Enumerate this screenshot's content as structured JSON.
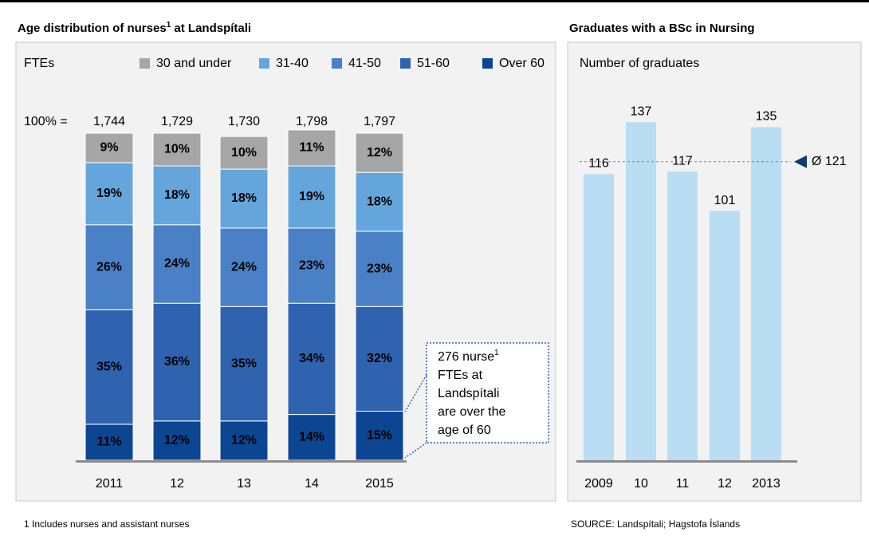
{
  "chart_data": [
    {
      "type": "stacked_bar",
      "title": [
        "Age distribution of nurses",
        "1",
        " at Landspítali"
      ],
      "unit_label": "FTEs",
      "totals_prefix": "100% =",
      "categories": [
        "2011",
        "12",
        "13",
        "14",
        "2015"
      ],
      "totals": [
        {
          "value": 1744,
          "label": "1,744"
        },
        {
          "value": 1729,
          "label": "1,729"
        },
        {
          "value": 1730,
          "label": "1,730"
        },
        {
          "value": 1798,
          "label": "1,798"
        },
        {
          "value": 1797,
          "label": "1,797"
        }
      ],
      "ylim": [
        0,
        100
      ],
      "series": [
        {
          "name": "30 and under",
          "color": "#a6a6a6",
          "label_color": "#000000",
          "values": [
            9,
            10,
            10,
            11,
            12
          ],
          "value_labels": [
            "9%",
            "10%",
            "10%",
            "11%",
            "12%"
          ]
        },
        {
          "name": "31-40",
          "color": "#64a6dc",
          "label_color": "#ffffff",
          "values": [
            19,
            18,
            18,
            19,
            18
          ],
          "value_labels": [
            "19%",
            "18%",
            "18%",
            "19%",
            "18%"
          ]
        },
        {
          "name": "41-50",
          "color": "#4a80c6",
          "label_color": "#ffffff",
          "values": [
            26,
            24,
            24,
            23,
            23
          ],
          "value_labels": [
            "26%",
            "24%",
            "24%",
            "23%",
            "23%"
          ]
        },
        {
          "name": "51-60",
          "color": "#2f63b0",
          "label_color": "#ffffff",
          "values": [
            35,
            36,
            35,
            34,
            32
          ],
          "value_labels": [
            "35%",
            "36%",
            "35%",
            "34%",
            "32%"
          ]
        },
        {
          "name": "Over 60",
          "color": "#0c4693",
          "label_color": "#ffffff",
          "values": [
            11,
            12,
            12,
            14,
            15
          ],
          "value_labels": [
            "11%",
            "12%",
            "12%",
            "14%",
            "15%"
          ]
        }
      ],
      "annotation": {
        "lead": "276 nurse",
        "sup": "1",
        "lines": [
          "FTEs at",
          "Landspítali",
          "are over the",
          "age of 60"
        ]
      }
    },
    {
      "type": "bar",
      "title": "Graduates with a BSc in Nursing",
      "ylabel": "Number of graduates",
      "categories": [
        "2009",
        "10",
        "11",
        "12",
        "2013"
      ],
      "values": [
        116,
        137,
        117,
        101,
        135
      ],
      "color": "#b9ddf3",
      "ylim": [
        0,
        150
      ],
      "average": {
        "value": 121,
        "label": "Ø 121"
      }
    }
  ],
  "footnote": "1 Includes nurses and assistant nurses",
  "source": "SOURCE: Landspítali; Hagstofa Íslands"
}
